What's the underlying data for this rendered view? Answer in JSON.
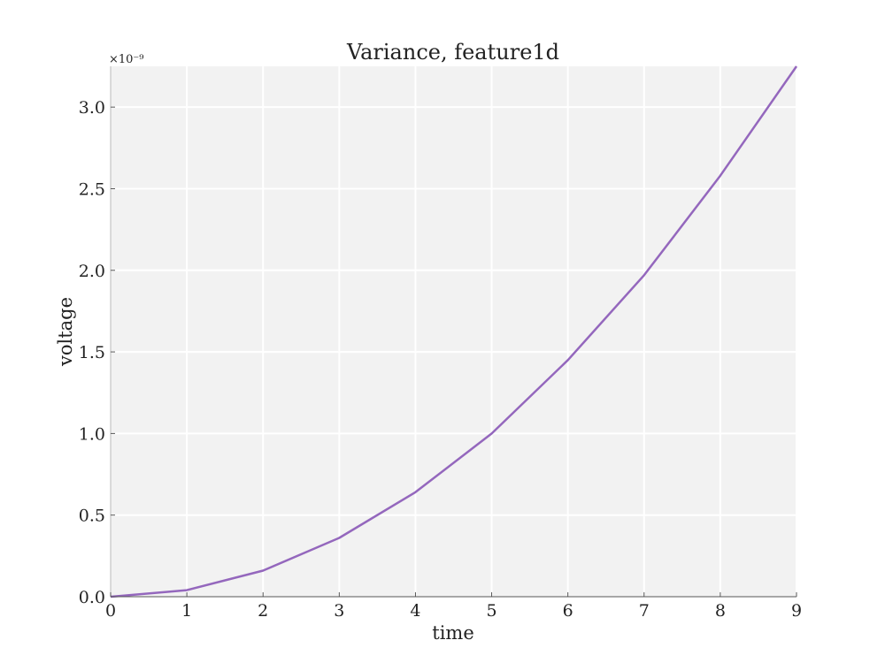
{
  "chart_data": {
    "type": "line",
    "title": "Variance, feature1d",
    "xlabel": "time",
    "ylabel": "voltage",
    "y_scale_label": "×10⁻⁹",
    "xlim": [
      0,
      9
    ],
    "ylim": [
      0,
      3.25
    ],
    "x_ticks": [
      0,
      1,
      2,
      3,
      4,
      5,
      6,
      7,
      8,
      9
    ],
    "x_tick_labels": [
      "0",
      "1",
      "2",
      "3",
      "4",
      "5",
      "6",
      "7",
      "8",
      "9"
    ],
    "y_ticks": [
      0,
      0.5,
      1.0,
      1.5,
      2.0,
      2.5,
      3.0
    ],
    "y_tick_labels": [
      "0.0",
      "0.5",
      "1.0",
      "1.5",
      "2.0",
      "2.5",
      "3.0"
    ],
    "grid": true,
    "series": [
      {
        "x": [
          0,
          1,
          2,
          3,
          4,
          5,
          6,
          7,
          8,
          9
        ],
        "values": [
          0.0,
          0.04,
          0.16,
          0.36,
          0.64,
          1.0,
          1.45,
          1.97,
          2.58,
          3.25
        ],
        "color": "#9467bd"
      }
    ],
    "plot_background": "#f2f2f2",
    "grid_color": "#ffffff"
  }
}
